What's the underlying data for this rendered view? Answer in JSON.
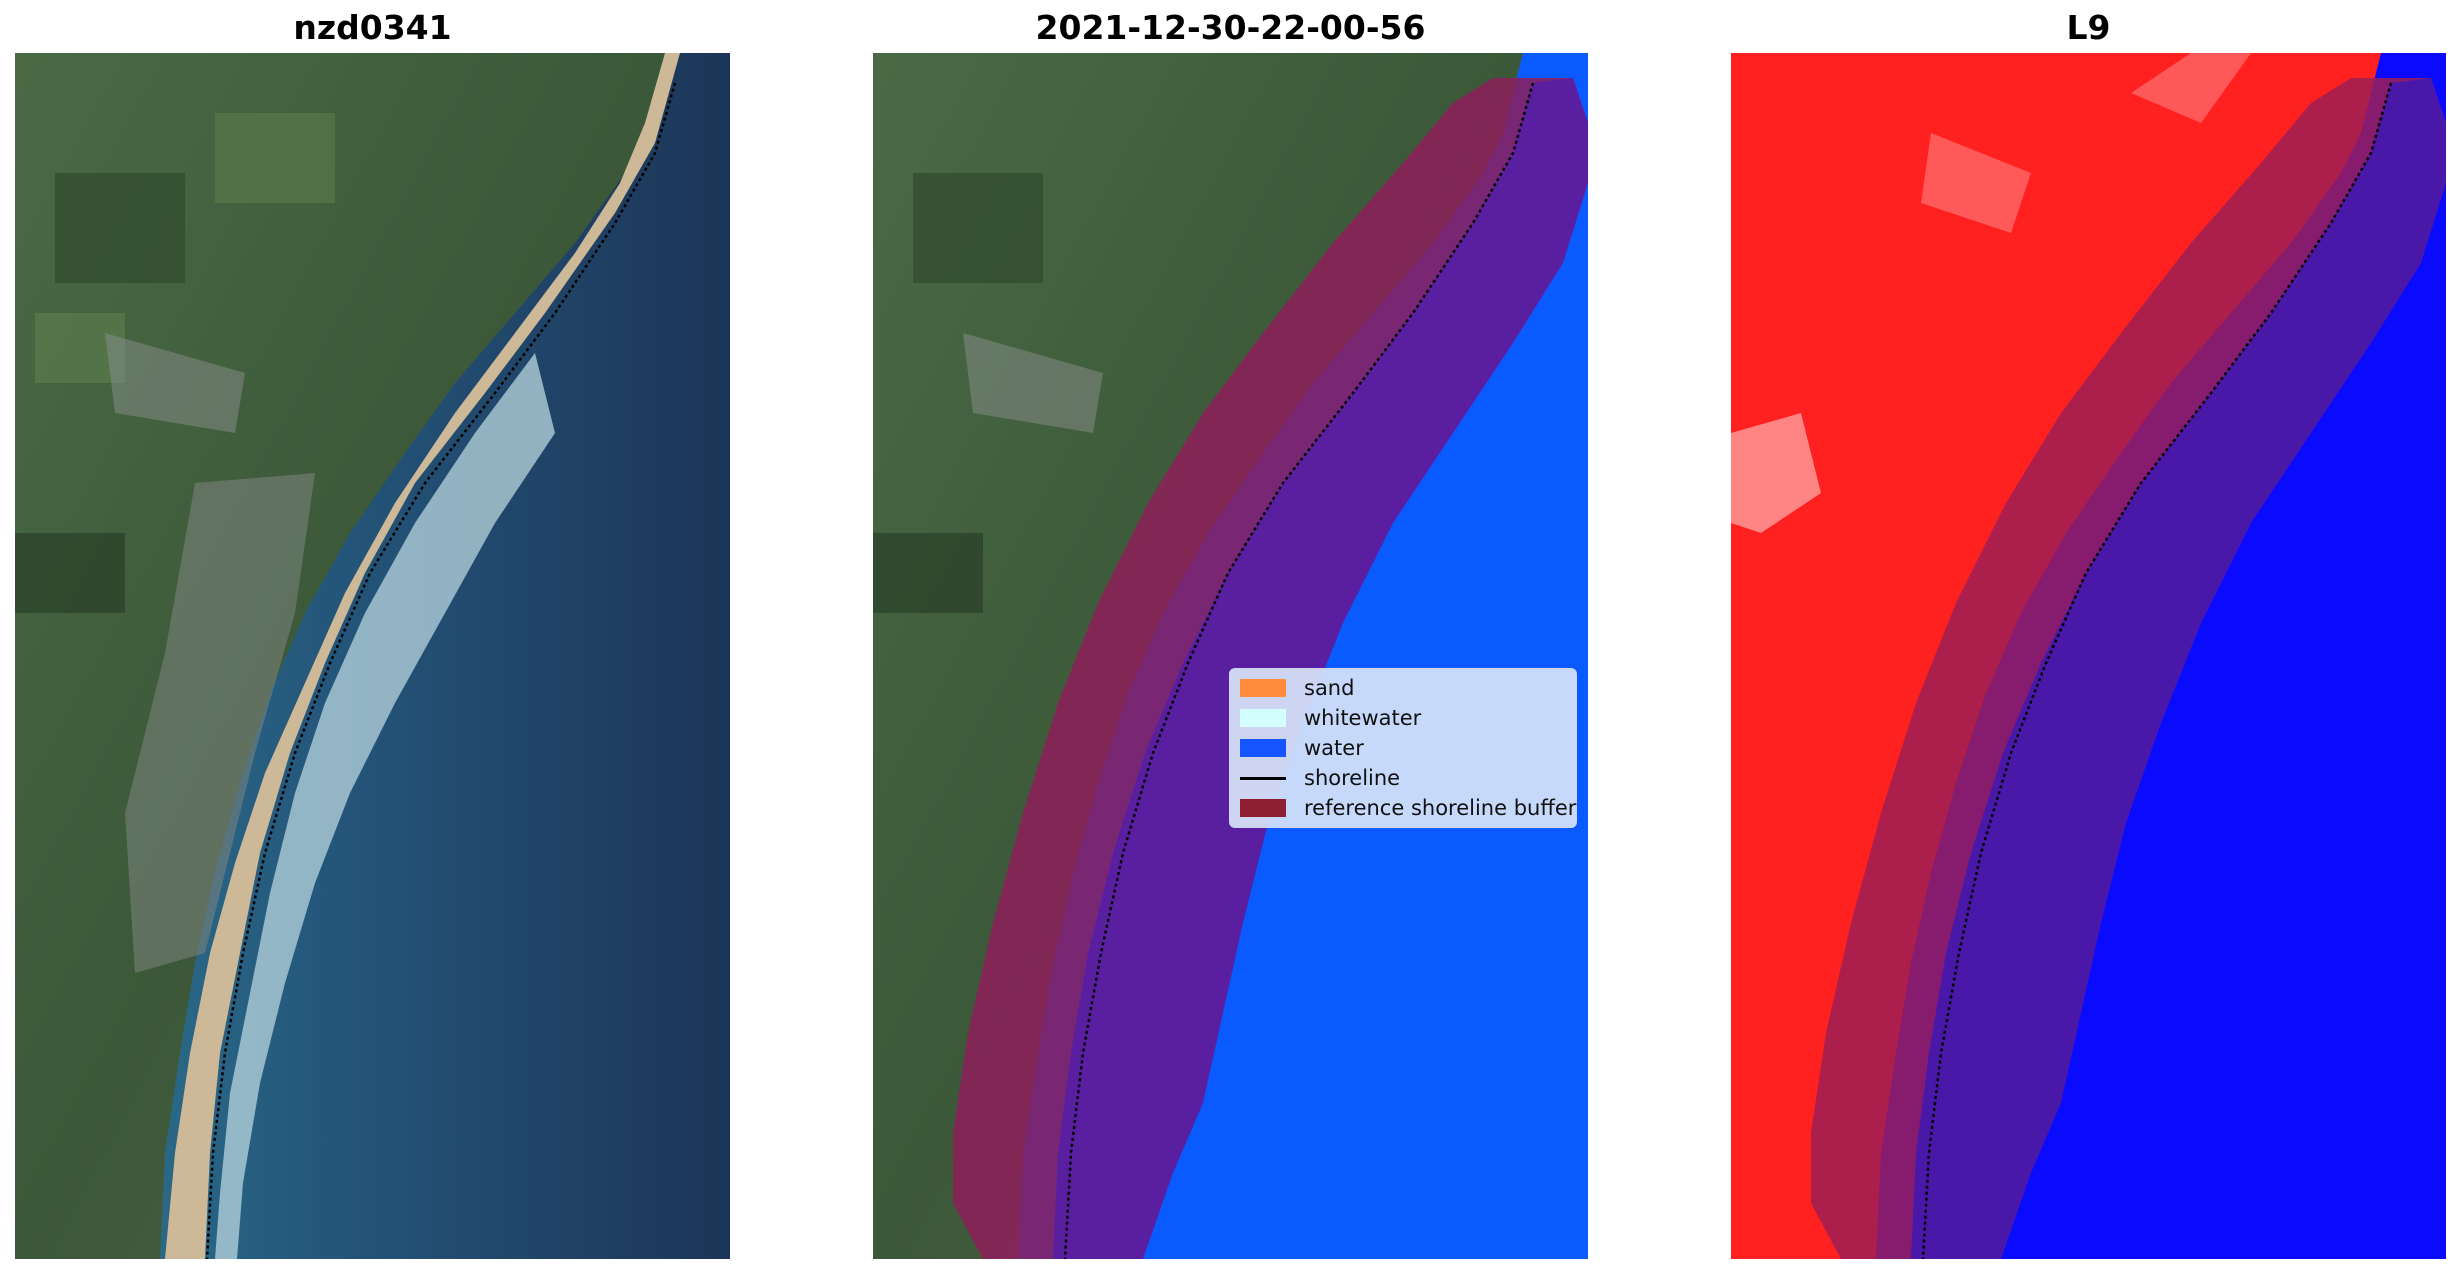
{
  "titles": {
    "left": "nzd0341",
    "middle": "2021-12-30-22-00-56",
    "right": "L9"
  },
  "legend": {
    "items": [
      {
        "label": "sand",
        "color": "#ff8c3a"
      },
      {
        "label": "whitewater",
        "color": "#d4ffff"
      },
      {
        "label": "water",
        "color": "#1455ff"
      },
      {
        "label": "shoreline",
        "color": "#000000"
      },
      {
        "label": "reference shoreline buffer",
        "color": "#8e1f33"
      }
    ]
  },
  "colors": {
    "land_green": "#3f5d3a",
    "ocean_dark": "#1d3a5c",
    "ocean_light": "#2d6a86",
    "sand": "#cdb897",
    "water_class": "#0a5bff",
    "buffer": "#8e1f33",
    "buffer_over_water": "#5a1fa0",
    "index_land": "#ff2020",
    "index_water": "#0a0aff"
  }
}
